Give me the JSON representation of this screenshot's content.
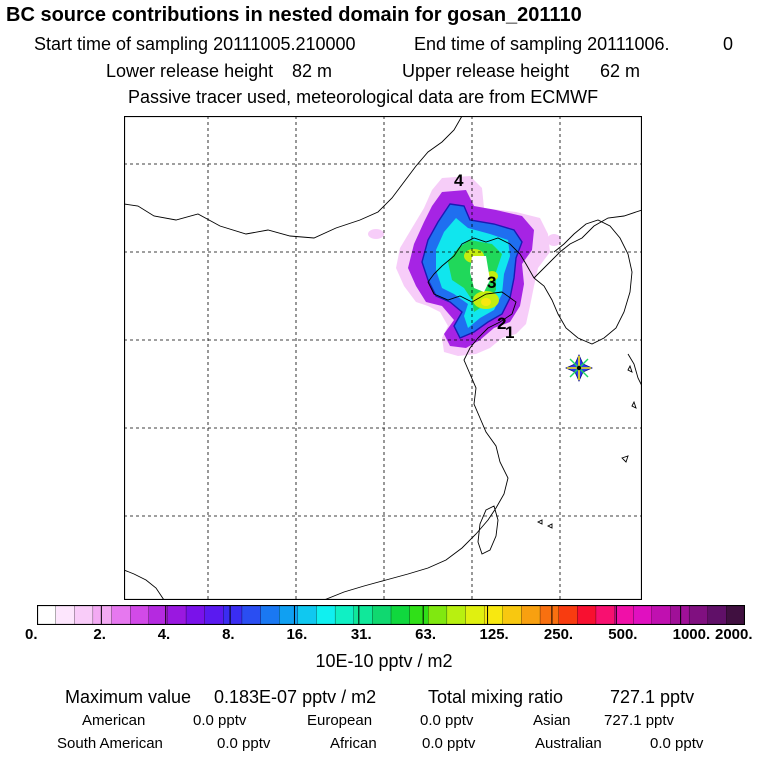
{
  "header": {
    "title": "BC  source contributions in nested domain for gosan_201110",
    "start_label": "Start time of sampling 20111005.210000",
    "end_label": "End time of sampling 20111006.",
    "end_value": "0",
    "lower_label": "Lower release height",
    "lower_value": "82 m",
    "upper_label": "Upper release height",
    "upper_value": "62 m",
    "tracer_note": "Passive tracer used, meteorological data are from ECMWF"
  },
  "map": {
    "source_labels": [
      "4",
      "3",
      "2",
      "1"
    ],
    "receptor_marker": "receptor-star-icon"
  },
  "colorbar": {
    "tick_labels": [
      "0.",
      "2.",
      "4.",
      "8.",
      "16.",
      "31.",
      "63.",
      "125.",
      "250.",
      "500.",
      "1000.",
      "2000."
    ],
    "units": "10E-10 pptv / m2",
    "colors": [
      "#ffffff",
      "#fde6fd",
      "#f9ccf9",
      "#f3aaf3",
      "#e678ef",
      "#d24ae8",
      "#b52ae0",
      "#9a18e0",
      "#7a12ea",
      "#5a1af0",
      "#3a2df2",
      "#2a4ef2",
      "#1a78f2",
      "#10a0f2",
      "#10c8f0",
      "#10f0f0",
      "#10f0c4",
      "#10e89a",
      "#10d870",
      "#10d83e",
      "#30e018",
      "#80e810",
      "#b8f010",
      "#e0f010",
      "#f8e810",
      "#f8c810",
      "#f8a010",
      "#f87010",
      "#f83c10",
      "#f81030",
      "#f81070",
      "#f010a8",
      "#e010c0",
      "#c010b0",
      "#a01098",
      "#801080",
      "#601068",
      "#401040"
    ]
  },
  "footer": {
    "max_label": "Maximum value",
    "max_value": "0.183E-07 pptv / m2",
    "total_label": "Total mixing ratio",
    "total_value": "727.1 pptv",
    "regions": [
      {
        "name": "American",
        "value": "0.0 pptv"
      },
      {
        "name": "European",
        "value": "0.0 pptv"
      },
      {
        "name": "Asian",
        "value": "727.1 pptv"
      },
      {
        "name": "South American",
        "value": "0.0 pptv"
      },
      {
        "name": "African",
        "value": "0.0 pptv"
      },
      {
        "name": "Australian",
        "value": "0.0 pptv"
      }
    ]
  }
}
